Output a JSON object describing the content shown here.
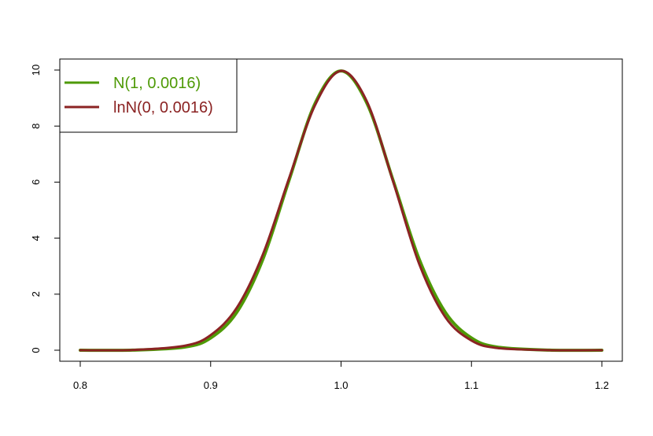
{
  "chart_data": {
    "type": "line",
    "title": "",
    "xlabel": "",
    "ylabel": "",
    "xlim": [
      0.8,
      1.2
    ],
    "ylim": [
      0,
      10
    ],
    "x_ticks": [
      0.8,
      0.9,
      1.0,
      1.1,
      1.2
    ],
    "x_tick_labels": [
      "0.8",
      "0.9",
      "1.0",
      "1.1",
      "1.2"
    ],
    "y_ticks": [
      0,
      2,
      4,
      6,
      8,
      10
    ],
    "y_tick_labels": [
      "0",
      "2",
      "4",
      "6",
      "8",
      "10"
    ],
    "grid": false,
    "legend_position": "top-left",
    "series": [
      {
        "name": "N(1, 0.0016)",
        "color": "#4e9a06",
        "x": [
          0.8,
          0.84,
          0.88,
          0.9,
          0.92,
          0.94,
          0.96,
          0.98,
          1.0,
          1.02,
          1.04,
          1.06,
          1.08,
          1.1,
          1.12,
          1.16,
          1.2
        ],
        "y": [
          0.0,
          0.0034,
          0.111,
          0.438,
          1.35,
          3.24,
          6.05,
          8.8,
          9.97,
          8.8,
          6.05,
          3.24,
          1.35,
          0.438,
          0.111,
          0.0034,
          0.0
        ]
      },
      {
        "name": "lnN(0, 0.0016)",
        "color": "#8b2323",
        "x": [
          0.8,
          0.84,
          0.88,
          0.9,
          0.92,
          0.94,
          0.96,
          0.98,
          1.0,
          1.02,
          1.04,
          1.06,
          1.08,
          1.1,
          1.12,
          1.16,
          1.2
        ],
        "y": [
          0.0,
          0.0083,
          0.158,
          0.54,
          1.51,
          3.41,
          6.12,
          8.74,
          9.97,
          8.86,
          6.01,
          3.07,
          1.18,
          0.345,
          0.077,
          0.0018,
          0.0
        ]
      }
    ]
  }
}
